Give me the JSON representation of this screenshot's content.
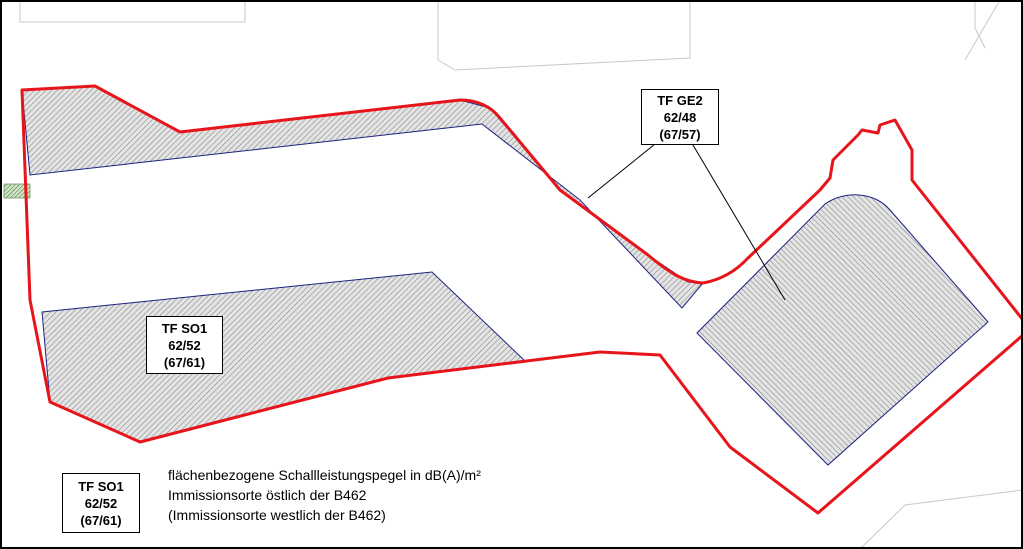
{
  "colors": {
    "boundary": "#e8141b",
    "area_outline": "#1a237e",
    "hatch": "#8a8a8a",
    "background_lines": "#c8c8c8",
    "frame": "#000000"
  },
  "labels": {
    "ge2": {
      "name": "TF GE2",
      "day": "62/48",
      "west": "(67/57)"
    },
    "so1": {
      "name": "TF SO1",
      "day": "62/52",
      "west": "(67/61)"
    }
  },
  "legend": {
    "sample": {
      "name": "TF SO1",
      "day": "62/52",
      "west": "(67/61)"
    },
    "line1": "flächenbezogene Schallleistungspegel in dB(A)/m²",
    "line2": "Immissionsorte östlich der B462",
    "line3": "(Immissionsorte westlich der B462)"
  }
}
